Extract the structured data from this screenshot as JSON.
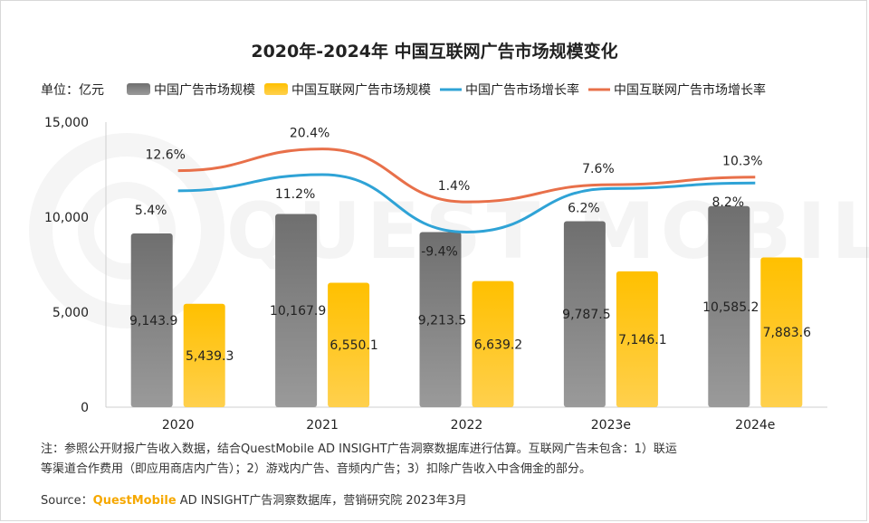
{
  "chart_data": {
    "type": "bar",
    "title": "2020年-2024年 中国互联网广告市场规模变化",
    "unit": "单位：亿元",
    "categories": [
      "2020",
      "2021",
      "2022",
      "2023e",
      "2024e"
    ],
    "ylim": [
      0,
      15000
    ],
    "yticks": [
      0,
      5000,
      10000,
      15000
    ],
    "ytick_labels": [
      "0",
      "5,000",
      "10,000",
      "15,000"
    ],
    "series": [
      {
        "name": "中国广告市场规模",
        "kind": "bar",
        "color": "#7a7a7a",
        "values": [
          9143.9,
          10167.9,
          9213.5,
          9787.5,
          10585.2
        ],
        "labels": [
          "9,143.9",
          "10,167.9",
          "9,213.5",
          "9,787.5",
          "10,585.2"
        ]
      },
      {
        "name": "中国互联网广告市场规模",
        "kind": "bar",
        "color": "#ffc000",
        "values": [
          5439.3,
          6550.1,
          6639.2,
          7146.1,
          7883.6
        ],
        "labels": [
          "5,439.3",
          "6,550.1",
          "6,639.2",
          "7,146.1",
          "7,883.6"
        ]
      },
      {
        "name": "中国广告市场增长率",
        "kind": "line",
        "color": "#2fa3d6",
        "values": [
          5.4,
          11.2,
          -9.4,
          6.2,
          8.2
        ],
        "labels": [
          "5.4%",
          "11.2%",
          "-9.4%",
          "6.2%",
          "8.2%"
        ]
      },
      {
        "name": "中国互联网广告市场增长率",
        "kind": "line",
        "color": "#e8704a",
        "values": [
          12.6,
          20.4,
          1.4,
          7.6,
          10.3
        ],
        "labels": [
          "12.6%",
          "20.4%",
          "1.4%",
          "7.6%",
          "10.3%"
        ]
      }
    ],
    "legend": "top",
    "grid": false
  },
  "note": {
    "line1": "注：参照公开财报广告收入数据，结合QuestMobile AD INSIGHT广告洞察数据库进行估算。互联网广告未包含：1）联运",
    "line2": "等渠道合作费用（即应用商店内广告）；2）游戏内广告、音频内广告；3）扣除广告收入中含佣金的部分。"
  },
  "source": {
    "prefix": "Source：",
    "brand": "QuestMobile",
    "rest": " AD INSIGHT广告洞察数据库，营销研究院 2023年3月"
  },
  "watermark": "QUEST MOBILE"
}
